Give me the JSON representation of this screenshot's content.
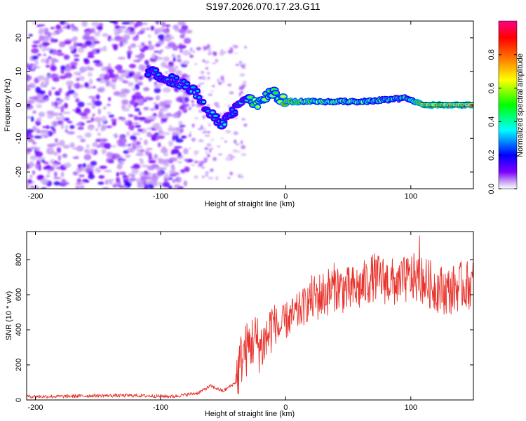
{
  "title": "S197.2026.070.17.23.G11",
  "chart_data": [
    {
      "type": "heatmap",
      "name": "spectrogram",
      "xlabel": "Height of straight line (km)",
      "ylabel": "Frequency (Hz)",
      "xlim": [
        -207,
        150
      ],
      "ylim": [
        -25,
        25
      ],
      "xticks": [
        -200,
        -100,
        0,
        100
      ],
      "yticks": [
        -20,
        -10,
        0,
        10,
        20
      ],
      "colorbar": {
        "label": "Normalized spectral amplitude",
        "range": [
          0,
          1
        ],
        "ticks": [
          "0.0",
          "0.2",
          "0.4",
          "0.6",
          "0.8"
        ],
        "tick_values": [
          0,
          0.2,
          0.4,
          0.6,
          0.8
        ],
        "colors": [
          "#ffffff",
          "#7f00ff",
          "#0000ff",
          "#00ffff",
          "#00ff00",
          "#ffff00",
          "#ff0000",
          "#ff0080"
        ]
      },
      "ridge": [
        {
          "x": -110,
          "freq": 10,
          "amp": 0.25
        },
        {
          "x": -95,
          "freq": 8,
          "amp": 0.3
        },
        {
          "x": -82,
          "freq": 6,
          "amp": 0.35
        },
        {
          "x": -72,
          "freq": 4,
          "amp": 0.35
        },
        {
          "x": -62,
          "freq": -2,
          "amp": 0.3
        },
        {
          "x": -52,
          "freq": -6,
          "amp": 0.4
        },
        {
          "x": -42,
          "freq": -2,
          "amp": 0.3
        },
        {
          "x": -32,
          "freq": 2,
          "amp": 0.4
        },
        {
          "x": -22,
          "freq": 0,
          "amp": 0.7
        },
        {
          "x": -12,
          "freq": 4,
          "amp": 0.5
        },
        {
          "x": 0,
          "freq": 1,
          "amp": 0.8
        },
        {
          "x": 30,
          "freq": 1,
          "amp": 0.7
        },
        {
          "x": 60,
          "freq": 1,
          "amp": 0.6
        },
        {
          "x": 95,
          "freq": 2,
          "amp": 0.5
        },
        {
          "x": 110,
          "freq": 0,
          "amp": 1.0
        },
        {
          "x": 150,
          "freq": 0,
          "amp": 1.0
        }
      ]
    },
    {
      "type": "line",
      "name": "snr",
      "xlabel": "Height of straight line (km)",
      "ylabel": "SNR (10 * v/v)",
      "xlim": [
        -207,
        150
      ],
      "ylim": [
        0,
        960
      ],
      "xticks": [
        -200,
        -100,
        0,
        100
      ],
      "yticks": [
        0,
        200,
        400,
        600,
        800
      ],
      "color": "#e8322b",
      "series": [
        {
          "name": "SNR",
          "x": [
            -207,
            -180,
            -150,
            -120,
            -90,
            -70,
            -60,
            -50,
            -40,
            -35,
            -30,
            -25,
            -20,
            -15,
            -10,
            -5,
            0,
            10,
            20,
            30,
            40,
            50,
            60,
            70,
            80,
            90,
            100,
            110,
            120,
            130,
            140,
            150
          ],
          "y": [
            20,
            20,
            25,
            25,
            20,
            40,
            80,
            50,
            100,
            250,
            300,
            350,
            300,
            350,
            450,
            400,
            450,
            500,
            570,
            600,
            650,
            620,
            640,
            700,
            680,
            660,
            700,
            680,
            640,
            620,
            650,
            660
          ]
        }
      ]
    }
  ]
}
